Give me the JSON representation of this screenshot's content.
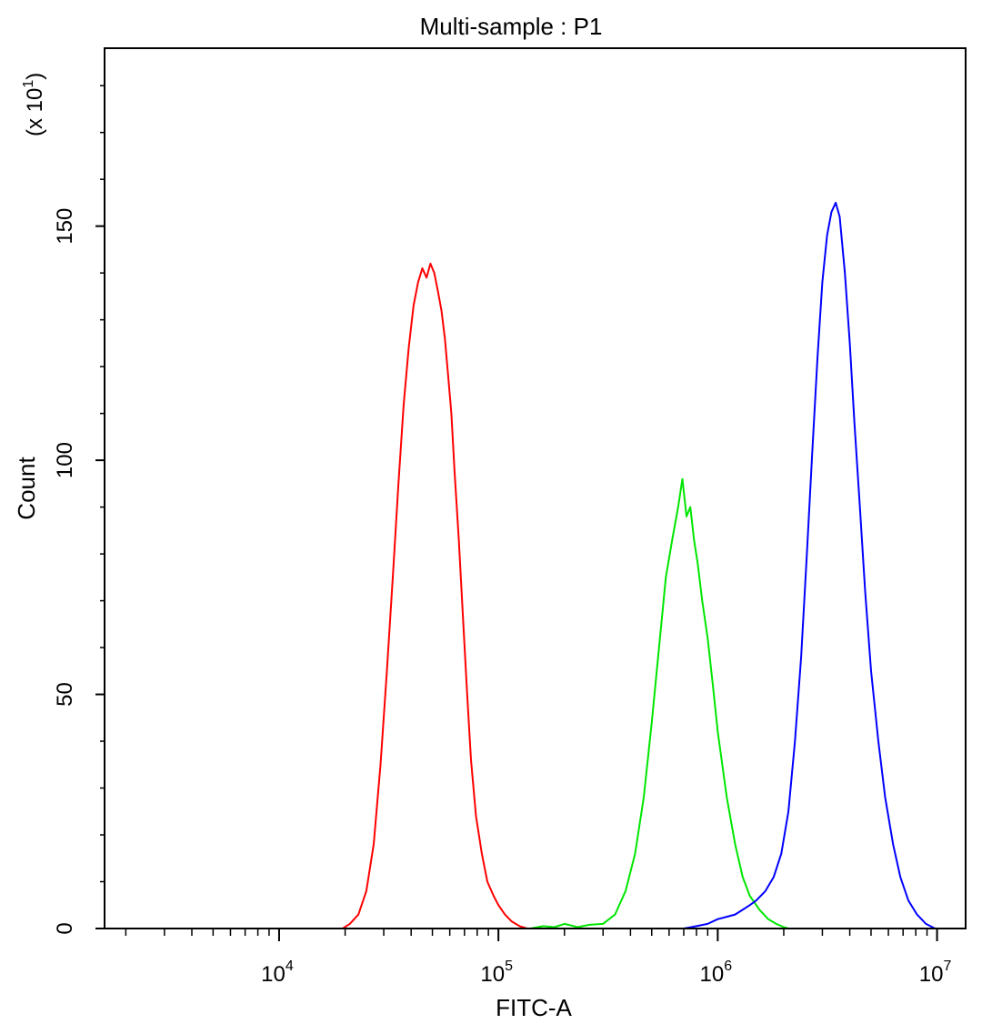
{
  "chart_data": {
    "type": "line",
    "title": "Multi-sample : P1",
    "xlabel": "FITC-A",
    "ylabel": "Count",
    "y_multiplier_label": "(x 10",
    "y_multiplier_exp": "1",
    "y_multiplier_close": ")",
    "x_scale": "log",
    "xlim": [
      1600,
      13500000
    ],
    "ylim": [
      0,
      188
    ],
    "grid": false,
    "legend": "none",
    "y_ticks": [
      {
        "value": 0,
        "label": "0"
      },
      {
        "value": 50,
        "label": "50"
      },
      {
        "value": 100,
        "label": "100"
      },
      {
        "value": 150,
        "label": "150"
      }
    ],
    "x_ticks": [
      {
        "value": 10000,
        "base": "10",
        "exp": "4"
      },
      {
        "value": 100000,
        "base": "10",
        "exp": "5"
      },
      {
        "value": 1000000,
        "base": "10",
        "exp": "6"
      },
      {
        "value": 10000000,
        "base": "10",
        "exp": "7"
      }
    ],
    "series": [
      {
        "color": "#ff0000",
        "x": [
          19500,
          21000,
          23000,
          25000,
          27000,
          29000,
          31000,
          33000,
          35000,
          37000,
          39000,
          41000,
          43000,
          45000,
          47000,
          49000,
          51000,
          53000,
          55000,
          57000,
          59000,
          61000,
          63000,
          66000,
          69000,
          72000,
          75000,
          79000,
          84000,
          89000,
          95000,
          100000,
          107000,
          115000,
          125000,
          135000
        ],
        "y": [
          0,
          1,
          3,
          8,
          18,
          35,
          55,
          75,
          95,
          112,
          124,
          133,
          138,
          141,
          139,
          142,
          140,
          136,
          132,
          126,
          118,
          110,
          98,
          83,
          66,
          50,
          36,
          24,
          16,
          10,
          7,
          5,
          3,
          1.5,
          0.5,
          0
        ]
      },
      {
        "color": "#00e600",
        "x": [
          140000,
          160000,
          180000,
          200000,
          230000,
          260000,
          300000,
          340000,
          380000,
          420000,
          460000,
          500000,
          540000,
          580000,
          620000,
          660000,
          690000,
          720000,
          750000,
          780000,
          810000,
          850000,
          900000,
          950000,
          1000000,
          1100000,
          1200000,
          1300000,
          1400000,
          1550000,
          1700000,
          1850000,
          2000000,
          2100000
        ],
        "y": [
          0,
          0.5,
          0.3,
          1,
          0.3,
          0.8,
          1,
          3,
          8,
          16,
          28,
          44,
          60,
          75,
          83,
          90,
          96,
          88,
          90,
          83,
          78,
          70,
          62,
          52,
          42,
          28,
          18,
          11,
          7,
          4,
          2,
          1,
          0.3,
          0
        ]
      },
      {
        "color": "#0000ff",
        "x": [
          600000,
          700000,
          800000,
          900000,
          1000000,
          1100000,
          1200000,
          1300000,
          1400000,
          1500000,
          1650000,
          1800000,
          1950000,
          2100000,
          2250000,
          2400000,
          2550000,
          2700000,
          2850000,
          3000000,
          3150000,
          3300000,
          3450000,
          3600000,
          3800000,
          4000000,
          4200000,
          4450000,
          4700000,
          5000000,
          5400000,
          5800000,
          6300000,
          6800000,
          7400000,
          8100000,
          8900000,
          9800000
        ],
        "y": [
          0,
          0,
          0.5,
          1,
          2,
          2.5,
          3,
          4,
          5,
          6,
          8,
          11,
          16,
          25,
          40,
          58,
          80,
          102,
          122,
          138,
          148,
          153,
          155,
          152,
          140,
          125,
          108,
          90,
          72,
          55,
          40,
          28,
          18,
          11,
          6,
          3,
          1,
          0
        ]
      }
    ]
  }
}
